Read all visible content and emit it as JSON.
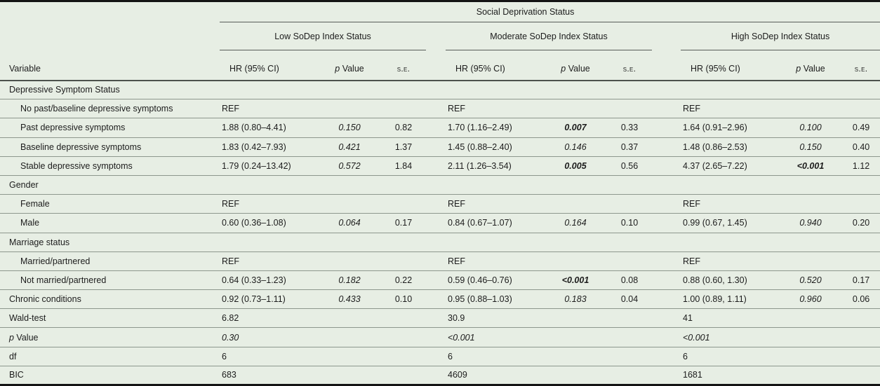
{
  "table": {
    "title": "Social Deprivation Status",
    "variable_header": "Variable",
    "groups": [
      {
        "label": "Low SoDep Index Status"
      },
      {
        "label": "Moderate SoDep Index Status"
      },
      {
        "label": "High SoDep Index Status"
      }
    ],
    "column_headers": {
      "hr": "HR (95% CI)",
      "p_symbol": "p",
      "p_word": "Value",
      "se": "s.e."
    },
    "colors": {
      "background": "#e7eee4",
      "heavy_rule": "#141414",
      "mid_rule": "#4c514c",
      "light_rule": "#8d978d",
      "text": "#1c1c1c"
    },
    "rows": [
      {
        "label": "Depressive Symptom Status",
        "section": true
      },
      {
        "label": "No past/baseline depressive symptoms",
        "indent": true,
        "cells": [
          {
            "hr": "REF"
          },
          {
            "hr": "REF"
          },
          {
            "hr": "REF"
          }
        ]
      },
      {
        "label": "Past depressive symptoms",
        "indent": true,
        "cells": [
          {
            "hr": "1.88 (0.80–4.41)",
            "p": "0.150",
            "p_style": "italic",
            "se": "0.82"
          },
          {
            "hr": "1.70 (1.16–2.49)",
            "p": "0.007",
            "p_style": "bold-italic",
            "se": "0.33"
          },
          {
            "hr": "1.64 (0.91–2.96)",
            "p": "0.100",
            "p_style": "italic",
            "se": "0.49"
          }
        ]
      },
      {
        "label": "Baseline depressive symptoms",
        "indent": true,
        "cells": [
          {
            "hr": "1.83 (0.42–7.93)",
            "p": "0.421",
            "p_style": "italic",
            "se": "1.37"
          },
          {
            "hr": "1.45 (0.88–2.40)",
            "p": "0.146",
            "p_style": "italic",
            "se": "0.37"
          },
          {
            "hr": "1.48 (0.86–2.53)",
            "p": "0.150",
            "p_style": "italic",
            "se": "0.40"
          }
        ]
      },
      {
        "label": "Stable depressive symptoms",
        "indent": true,
        "cells": [
          {
            "hr": "1.79 (0.24–13.42)",
            "p": "0.572",
            "p_style": "italic",
            "se": "1.84"
          },
          {
            "hr": "2.11 (1.26–3.54)",
            "p": "0.005",
            "p_style": "bold-italic",
            "se": "0.56"
          },
          {
            "hr": "4.37 (2.65–7.22)",
            "p": "<0.001",
            "p_style": "bold-italic",
            "se": "1.12"
          }
        ]
      },
      {
        "label": "Gender",
        "section": true
      },
      {
        "label": "Female",
        "indent": true,
        "cells": [
          {
            "hr": "REF"
          },
          {
            "hr": "REF"
          },
          {
            "hr": "REF"
          }
        ]
      },
      {
        "label": "Male",
        "indent": true,
        "cells": [
          {
            "hr": "0.60 (0.36–1.08)",
            "p": "0.064",
            "p_style": "italic",
            "se": "0.17"
          },
          {
            "hr": "0.84 (0.67–1.07)",
            "p": "0.164",
            "p_style": "italic",
            "se": "0.10"
          },
          {
            "hr": "0.99 (0.67, 1.45)",
            "p": "0.940",
            "p_style": "italic",
            "se": "0.20"
          }
        ]
      },
      {
        "label": "Marriage status",
        "section": true
      },
      {
        "label": "Married/partnered",
        "indent": true,
        "cells": [
          {
            "hr": "REF"
          },
          {
            "hr": "REF"
          },
          {
            "hr": "REF"
          }
        ]
      },
      {
        "label": "Not married/partnered",
        "indent": true,
        "cells": [
          {
            "hr": "0.64 (0.33–1.23)",
            "p": "0.182",
            "p_style": "italic",
            "se": "0.22"
          },
          {
            "hr": "0.59 (0.46–0.76)",
            "p": "<0.001",
            "p_style": "bold-italic",
            "se": "0.08"
          },
          {
            "hr": "0.88 (0.60, 1.30)",
            "p": "0.520",
            "p_style": "italic",
            "se": "0.17"
          }
        ]
      },
      {
        "label": "Chronic conditions",
        "cells": [
          {
            "hr": "0.92 (0.73–1.11)",
            "p": "0.433",
            "p_style": "italic",
            "se": "0.10"
          },
          {
            "hr": "0.95 (0.88–1.03)",
            "p": "0.183",
            "p_style": "italic",
            "se": "0.04"
          },
          {
            "hr": "1.00 (0.89, 1.11)",
            "p": "0.960",
            "p_style": "italic",
            "se": "0.06"
          }
        ]
      },
      {
        "label": "Wald-test",
        "cells": [
          {
            "hr": "6.82"
          },
          {
            "hr": "30.9"
          },
          {
            "hr": "41"
          }
        ]
      },
      {
        "label": "p Value",
        "italic_first_word": true,
        "cells": [
          {
            "hr": "0.30",
            "hr_style": "italic"
          },
          {
            "hr": "<0.001",
            "hr_style": "italic"
          },
          {
            "hr": "<0.001",
            "hr_style": "italic"
          }
        ]
      },
      {
        "label": "df",
        "cells": [
          {
            "hr": "6"
          },
          {
            "hr": "6"
          },
          {
            "hr": "6"
          }
        ]
      },
      {
        "label": "BIC",
        "cells": [
          {
            "hr": "683"
          },
          {
            "hr": "4609"
          },
          {
            "hr": "1681"
          }
        ]
      }
    ]
  }
}
